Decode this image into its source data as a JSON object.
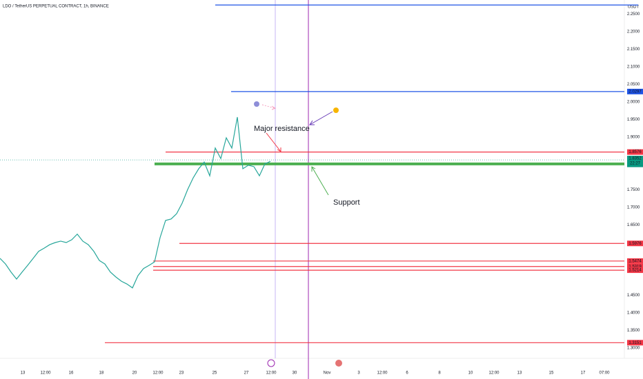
{
  "chart_data": {
    "type": "line",
    "title": "LDO / TetherUS PERPETUAL CONTRACT, 1h, BINANCE",
    "currency": "USDT",
    "color": "#26a69a",
    "values": [
      1.555,
      1.539,
      1.516,
      1.496,
      1.516,
      1.535,
      1.555,
      1.575,
      1.584,
      1.594,
      1.6,
      1.604,
      1.6,
      1.608,
      1.624,
      1.604,
      1.594,
      1.575,
      1.549,
      1.539,
      1.516,
      1.502,
      1.49,
      1.482,
      1.471,
      1.506,
      1.526,
      1.535,
      1.545,
      1.614,
      1.663,
      1.667,
      1.682,
      1.712,
      1.751,
      1.784,
      1.81,
      1.829,
      1.79,
      1.869,
      1.839,
      1.898,
      1.869,
      1.957,
      1.81,
      1.82,
      1.816,
      1.79,
      1.824,
      1.831
    ],
    "ylim": [
      1.2706,
      2.2902
    ],
    "yticks": [
      {
        "value": 2.25,
        "label": "2.2500"
      },
      {
        "value": 2.2,
        "label": "2.2000"
      },
      {
        "value": 2.15,
        "label": "2.1500"
      },
      {
        "value": 2.1,
        "label": "2.1000"
      },
      {
        "value": 2.05,
        "label": "2.0500"
      },
      {
        "value": 2.0,
        "label": "2.0000"
      },
      {
        "value": 1.95,
        "label": "1.9500"
      },
      {
        "value": 1.9,
        "label": "1.9000"
      },
      {
        "value": 1.75,
        "label": "1.7500"
      },
      {
        "value": 1.7,
        "label": "1.7000"
      },
      {
        "value": 1.65,
        "label": "1.6500"
      },
      {
        "value": 1.45,
        "label": "1.4500"
      },
      {
        "value": 1.4,
        "label": "1.4000"
      },
      {
        "value": 1.35,
        "label": "1.3500"
      },
      {
        "value": 1.3,
        "label": "1.3000"
      }
    ],
    "x_labels": [
      "13",
      "12:00",
      "16",
      "18",
      "20",
      "12:00",
      "23",
      "25",
      "27",
      "12:00",
      "30",
      "Nov",
      "3",
      "12:00",
      "6",
      "8",
      "10",
      "12:00",
      "13",
      "15",
      "17",
      "07:00"
    ],
    "levels": [
      {
        "value": 2.276,
        "color": "#1e53e5"
      },
      {
        "value": 2.0297,
        "color": "#1e53e5"
      },
      {
        "value": 1.8576,
        "color": "#f23645"
      },
      {
        "value": 1.8239,
        "color": "#4caf50"
      },
      {
        "value": 1.5976,
        "color": "#f23645"
      },
      {
        "value": 1.5474,
        "color": "#f23645"
      },
      {
        "value": 1.5319,
        "color": "#f23645"
      },
      {
        "value": 1.5214,
        "color": "#f23645"
      },
      {
        "value": 1.3151,
        "color": "#f23645"
      }
    ],
    "price_labels": [
      {
        "value": 1.8352,
        "color": "#089981"
      },
      {
        "value": 1.8264,
        "color": "#089981"
      }
    ],
    "countdown": "22:27",
    "annotations": [
      {
        "text": "Major resistance",
        "color": "#f23645"
      },
      {
        "text": "Support",
        "color": "#4caf50"
      }
    ]
  }
}
